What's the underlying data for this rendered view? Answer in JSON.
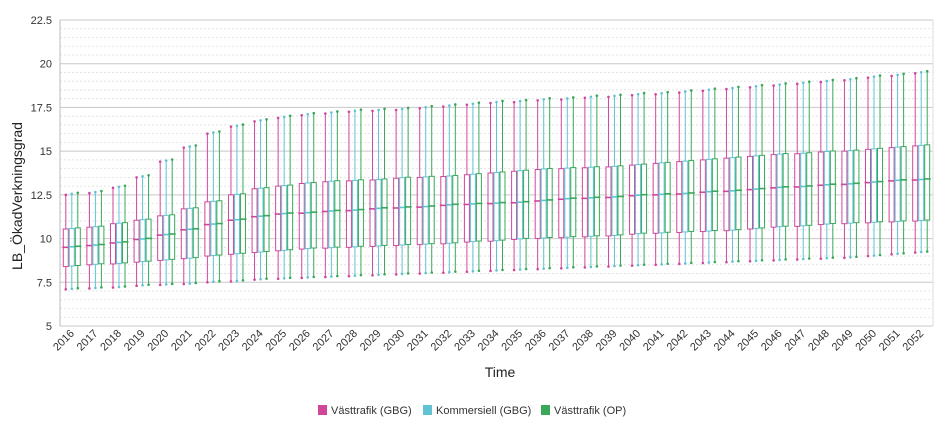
{
  "chart_data": {
    "type": "boxplot",
    "xlabel": "Time",
    "ylabel": "LB_ÖkadVerkningsgrad",
    "ylim": [
      5,
      22.5
    ],
    "yticks": [
      "5",
      "7.5",
      "10",
      "12.5",
      "15",
      "17.5",
      "20",
      "22.5"
    ],
    "ytick_values": [
      5,
      7.5,
      10,
      12.5,
      15,
      17.5,
      20,
      22.5
    ],
    "grid": true,
    "legend_position": "bottom",
    "categories": [
      "2016",
      "2017",
      "2018",
      "2019",
      "2020",
      "2021",
      "2022",
      "2023",
      "2024",
      "2025",
      "2026",
      "2027",
      "2028",
      "2029",
      "2030",
      "2031",
      "2032",
      "2033",
      "2034",
      "2035",
      "2036",
      "2037",
      "2038",
      "2039",
      "2040",
      "2041",
      "2042",
      "2043",
      "2044",
      "2045",
      "2046",
      "2047",
      "2048",
      "2049",
      "2050",
      "2051",
      "2052"
    ],
    "series": [
      {
        "name": "Västtrafik (GBG)",
        "color": "#d0479a"
      },
      {
        "name": "Kommersiell (GBG)",
        "color": "#5fc3d4"
      },
      {
        "name": "Västtrafik (OP)",
        "color": "#3aa85a"
      }
    ],
    "box_stats": {
      "median": [
        9.5,
        9.6,
        9.75,
        9.95,
        10.2,
        10.5,
        10.8,
        11.05,
        11.25,
        11.4,
        11.45,
        11.55,
        11.6,
        11.7,
        11.75,
        11.8,
        11.9,
        11.95,
        12.0,
        12.05,
        12.15,
        12.25,
        12.3,
        12.35,
        12.45,
        12.5,
        12.55,
        12.65,
        12.7,
        12.8,
        12.9,
        12.95,
        13.05,
        13.1,
        13.2,
        13.3,
        13.35
      ],
      "q1": [
        8.4,
        8.5,
        8.55,
        8.65,
        8.75,
        8.85,
        9.0,
        9.1,
        9.2,
        9.3,
        9.4,
        9.45,
        9.5,
        9.55,
        9.6,
        9.65,
        9.7,
        9.8,
        9.85,
        9.95,
        10.0,
        10.05,
        10.1,
        10.15,
        10.25,
        10.3,
        10.35,
        10.4,
        10.45,
        10.55,
        10.65,
        10.7,
        10.8,
        10.85,
        10.9,
        10.95,
        11.0
      ],
      "q3": [
        10.55,
        10.65,
        10.85,
        11.05,
        11.3,
        11.7,
        12.1,
        12.5,
        12.85,
        13.0,
        13.15,
        13.25,
        13.3,
        13.35,
        13.45,
        13.5,
        13.55,
        13.65,
        13.75,
        13.85,
        13.95,
        14.0,
        14.05,
        14.1,
        14.2,
        14.3,
        14.4,
        14.5,
        14.6,
        14.7,
        14.8,
        14.85,
        14.95,
        15.0,
        15.1,
        15.2,
        15.3
      ],
      "min": [
        7.1,
        7.15,
        7.2,
        7.3,
        7.35,
        7.4,
        7.5,
        7.55,
        7.65,
        7.7,
        7.75,
        7.8,
        7.85,
        7.9,
        7.95,
        8.0,
        8.05,
        8.1,
        8.15,
        8.2,
        8.25,
        8.3,
        8.35,
        8.4,
        8.45,
        8.5,
        8.55,
        8.6,
        8.65,
        8.7,
        8.75,
        8.8,
        8.85,
        8.9,
        9.0,
        9.1,
        9.2
      ],
      "max": [
        12.5,
        12.6,
        12.9,
        13.5,
        14.4,
        15.2,
        16.0,
        16.4,
        16.7,
        16.9,
        17.05,
        17.15,
        17.25,
        17.3,
        17.35,
        17.45,
        17.55,
        17.65,
        17.75,
        17.8,
        17.9,
        17.95,
        18.05,
        18.1,
        18.2,
        18.25,
        18.35,
        18.45,
        18.55,
        18.65,
        18.75,
        18.85,
        18.95,
        19.05,
        19.2,
        19.3,
        19.45
      ]
    }
  }
}
